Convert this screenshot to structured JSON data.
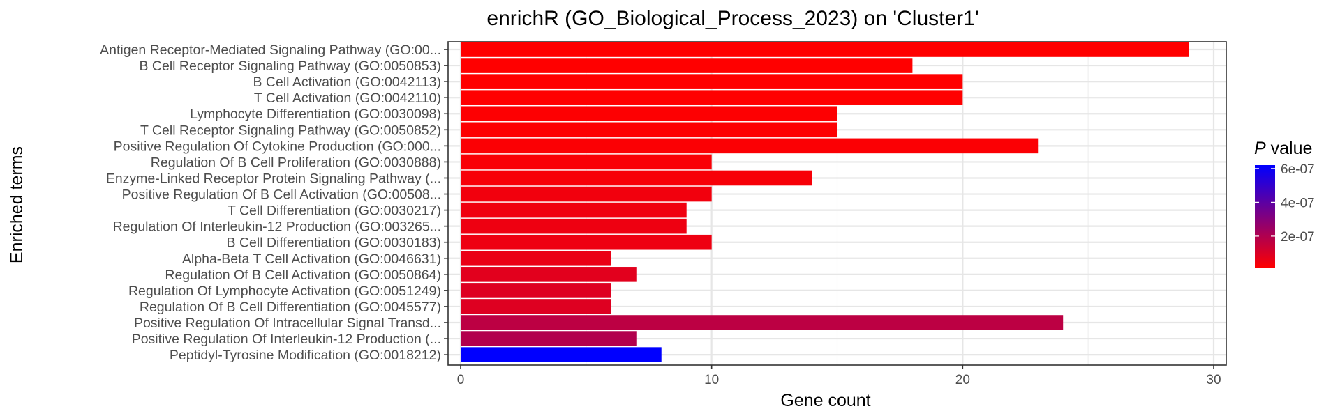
{
  "chart_data": {
    "type": "bar",
    "orientation": "horizontal",
    "title": "enrichR (GO_Biological_Process_2023) on 'Cluster1'",
    "xlabel": "Gene count",
    "ylabel": "Enriched terms",
    "xlim": [
      0,
      30
    ],
    "xticks": [
      0,
      10,
      20,
      30
    ],
    "grid": true,
    "legend": {
      "title_italic": "P",
      "title_rest": " value",
      "placement": "right",
      "type": "colorbar",
      "color_low": "#ff0000",
      "color_high": "#0000ff",
      "range": [
        1e-08,
        6.2e-07
      ],
      "ticks": [
        {
          "value": 2e-07,
          "label": "2e-07"
        },
        {
          "value": 4e-07,
          "label": "4e-07"
        },
        {
          "value": 6e-07,
          "label": "6e-07"
        }
      ]
    },
    "categories": [
      "Antigen Receptor-Mediated Signaling Pathway (GO:00...",
      "B Cell Receptor Signaling Pathway (GO:0050853)",
      "B Cell Activation (GO:0042113)",
      "T Cell Activation (GO:0042110)",
      "Lymphocyte Differentiation (GO:0030098)",
      "T Cell Receptor Signaling Pathway (GO:0050852)",
      "Positive Regulation Of Cytokine Production (GO:000...",
      "Regulation Of B Cell Proliferation (GO:0030888)",
      "Enzyme-Linked Receptor Protein Signaling Pathway (...",
      "Positive Regulation Of B Cell Activation (GO:00508...",
      "T Cell Differentiation (GO:0030217)",
      "Regulation Of Interleukin-12 Production (GO:003265...",
      "B Cell Differentiation (GO:0030183)",
      "Alpha-Beta T Cell Activation (GO:0046631)",
      "Regulation Of B Cell Activation (GO:0050864)",
      "Regulation Of Lymphocyte Activation (GO:0051249)",
      "Regulation Of B Cell Differentiation (GO:0045577)",
      "Positive Regulation Of Intracellular Signal Transd...",
      "Positive Regulation Of Interleukin-12 Production (...",
      "Peptidyl-Tyrosine Modification (GO:0018212)"
    ],
    "values": [
      29,
      18,
      20,
      20,
      15,
      15,
      23,
      10,
      14,
      10,
      9,
      9,
      10,
      6,
      7,
      6,
      6,
      24,
      7,
      8
    ],
    "p_values": [
      1e-08,
      1e-08,
      1e-08,
      1e-08,
      1.5e-08,
      1.5e-08,
      2e-08,
      2.5e-08,
      3e-08,
      4e-08,
      4.5e-08,
      5e-08,
      5e-08,
      6e-08,
      8e-08,
      9e-08,
      9e-08,
      1.7e-07,
      1.95e-07,
      6.2e-07
    ]
  }
}
